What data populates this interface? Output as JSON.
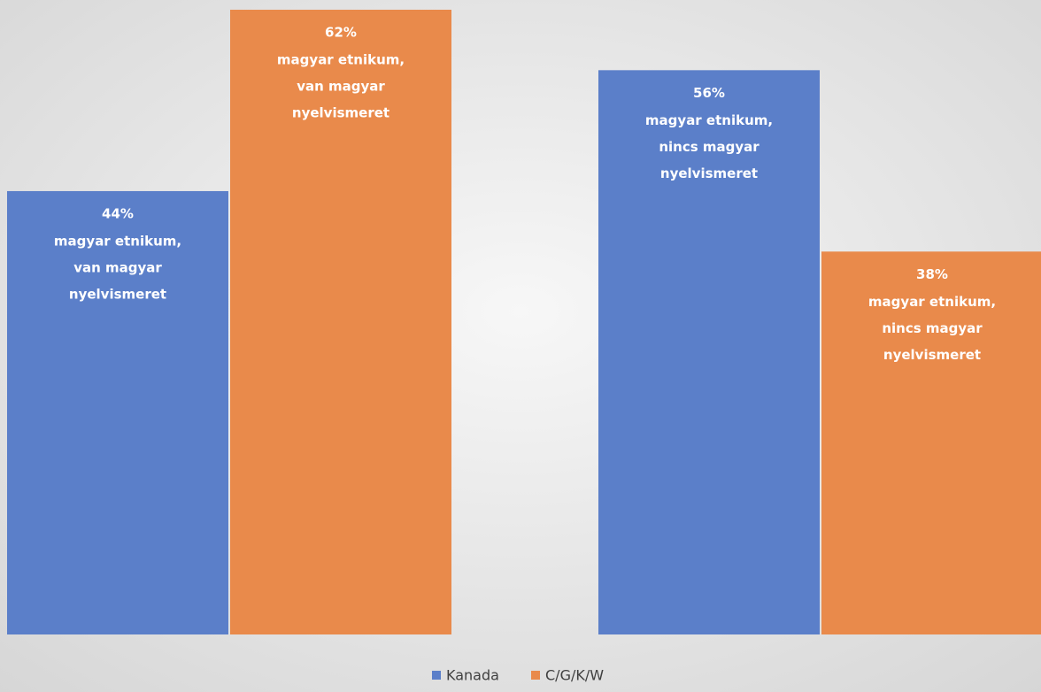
{
  "chart_data": {
    "type": "bar",
    "categories": [
      null,
      null
    ],
    "series": [
      {
        "name": "Kanada",
        "color": "#5b7fc9",
        "values": [
          44,
          56
        ],
        "value_labels": [
          "44%",
          "56%"
        ],
        "label_lines": [
          [
            "magyar etnikum,",
            "van magyar",
            "nyelvismeret"
          ],
          [
            "magyar etnikum,",
            "nincs magyar",
            "nyelvismeret"
          ]
        ]
      },
      {
        "name": "C/G/K/W",
        "color": "#e98a4b",
        "values": [
          62,
          38
        ],
        "value_labels": [
          "62%",
          "38%"
        ],
        "label_lines": [
          [
            "magyar etnikum,",
            "van magyar",
            "nyelvismeret"
          ],
          [
            "magyar etnikum,",
            "nincs magyar",
            "nyelvismeret"
          ]
        ]
      }
    ],
    "ylim": [
      0,
      62
    ],
    "legend": "bottom"
  }
}
